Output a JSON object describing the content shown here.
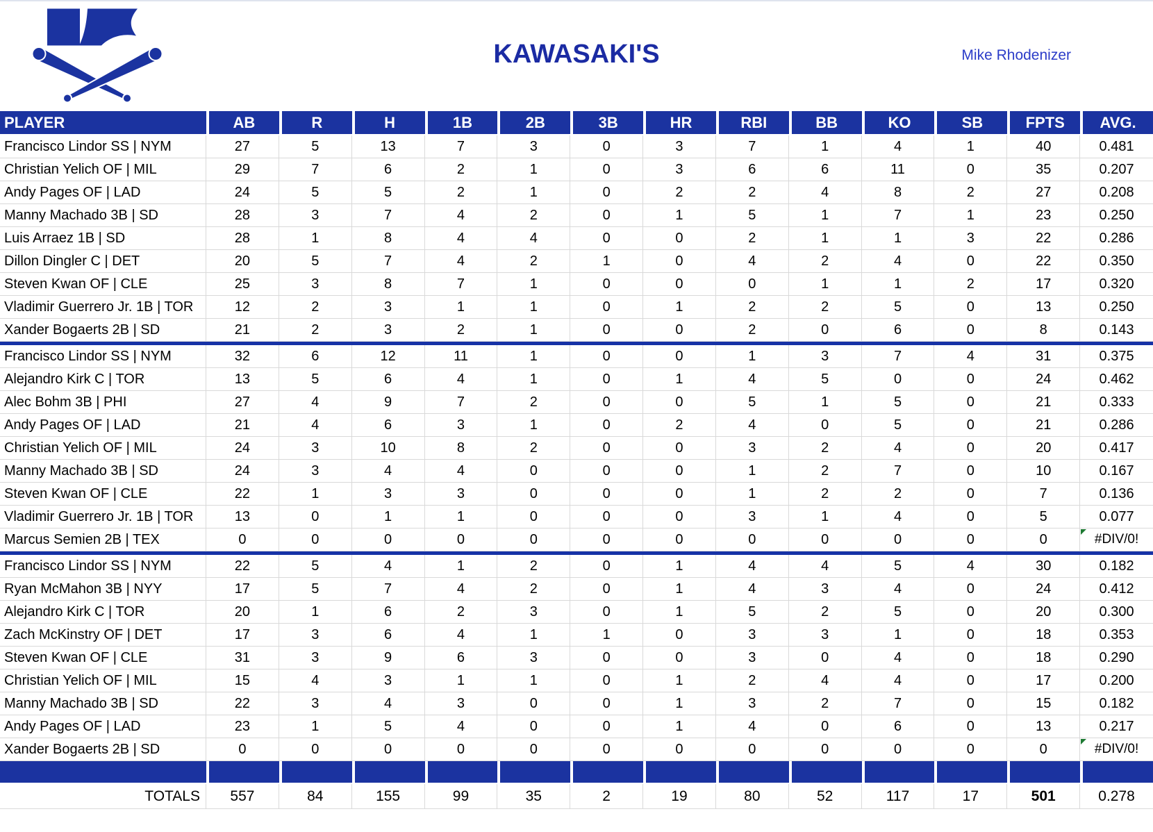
{
  "header": {
    "title": "KAWASAKI'S",
    "owner": "Mike Rhodenizer",
    "logo": "kawasaki-k-crossed-bats-logo"
  },
  "colors": {
    "primary_blue": "#1B33A0",
    "title_blue": "#1B2BA3",
    "owner_blue": "#2B3CC8",
    "divider_blue": "#1632A6",
    "gridline_gray": "#D9D9D9",
    "error_indicator_green": "#1E7A33"
  },
  "table": {
    "columns": [
      "PLAYER",
      "AB",
      "R",
      "H",
      "1B",
      "2B",
      "3B",
      "HR",
      "RBI",
      "BB",
      "KO",
      "SB",
      "FPTS",
      "AVG."
    ],
    "error_value": "#DIV/0!",
    "sections": [
      {
        "rows": [
          {
            "player": "Francisco Lindor SS | NYM",
            "values": [
              "27",
              "5",
              "13",
              "7",
              "3",
              "0",
              "3",
              "7",
              "1",
              "4",
              "1",
              "40",
              "0.481"
            ]
          },
          {
            "player": "Christian Yelich OF | MIL",
            "values": [
              "29",
              "7",
              "6",
              "2",
              "1",
              "0",
              "3",
              "6",
              "6",
              "11",
              "0",
              "35",
              "0.207"
            ]
          },
          {
            "player": "Andy Pages OF | LAD",
            "values": [
              "24",
              "5",
              "5",
              "2",
              "1",
              "0",
              "2",
              "2",
              "4",
              "8",
              "2",
              "27",
              "0.208"
            ]
          },
          {
            "player": "Manny Machado 3B | SD",
            "values": [
              "28",
              "3",
              "7",
              "4",
              "2",
              "0",
              "1",
              "5",
              "1",
              "7",
              "1",
              "23",
              "0.250"
            ]
          },
          {
            "player": "Luis Arraez 1B | SD",
            "values": [
              "28",
              "1",
              "8",
              "4",
              "4",
              "0",
              "0",
              "2",
              "1",
              "1",
              "3",
              "22",
              "0.286"
            ]
          },
          {
            "player": "Dillon Dingler C | DET",
            "values": [
              "20",
              "5",
              "7",
              "4",
              "2",
              "1",
              "0",
              "4",
              "2",
              "4",
              "0",
              "22",
              "0.350"
            ]
          },
          {
            "player": "Steven Kwan OF | CLE",
            "values": [
              "25",
              "3",
              "8",
              "7",
              "1",
              "0",
              "0",
              "0",
              "1",
              "1",
              "2",
              "17",
              "0.320"
            ]
          },
          {
            "player": "Vladimir Guerrero Jr. 1B | TOR",
            "values": [
              "12",
              "2",
              "3",
              "1",
              "1",
              "0",
              "1",
              "2",
              "2",
              "5",
              "0",
              "13",
              "0.250"
            ]
          },
          {
            "player": "Xander Bogaerts 2B | SD",
            "values": [
              "21",
              "2",
              "3",
              "2",
              "1",
              "0",
              "0",
              "2",
              "0",
              "6",
              "0",
              "8",
              "0.143"
            ]
          }
        ]
      },
      {
        "rows": [
          {
            "player": "Francisco Lindor SS | NYM",
            "values": [
              "32",
              "6",
              "12",
              "11",
              "1",
              "0",
              "0",
              "1",
              "3",
              "7",
              "4",
              "31",
              "0.375"
            ]
          },
          {
            "player": "Alejandro Kirk C | TOR",
            "values": [
              "13",
              "5",
              "6",
              "4",
              "1",
              "0",
              "1",
              "4",
              "5",
              "0",
              "0",
              "24",
              "0.462"
            ]
          },
          {
            "player": "Alec Bohm 3B | PHI",
            "values": [
              "27",
              "4",
              "9",
              "7",
              "2",
              "0",
              "0",
              "5",
              "1",
              "5",
              "0",
              "21",
              "0.333"
            ]
          },
          {
            "player": "Andy Pages OF | LAD",
            "values": [
              "21",
              "4",
              "6",
              "3",
              "1",
              "0",
              "2",
              "4",
              "0",
              "5",
              "0",
              "21",
              "0.286"
            ]
          },
          {
            "player": "Christian Yelich OF | MIL",
            "values": [
              "24",
              "3",
              "10",
              "8",
              "2",
              "0",
              "0",
              "3",
              "2",
              "4",
              "0",
              "20",
              "0.417"
            ]
          },
          {
            "player": "Manny Machado 3B | SD",
            "values": [
              "24",
              "3",
              "4",
              "4",
              "0",
              "0",
              "0",
              "1",
              "2",
              "7",
              "0",
              "10",
              "0.167"
            ]
          },
          {
            "player": "Steven Kwan OF | CLE",
            "values": [
              "22",
              "1",
              "3",
              "3",
              "0",
              "0",
              "0",
              "1",
              "2",
              "2",
              "0",
              "7",
              "0.136"
            ]
          },
          {
            "player": "Vladimir Guerrero Jr. 1B | TOR",
            "values": [
              "13",
              "0",
              "1",
              "1",
              "0",
              "0",
              "0",
              "3",
              "1",
              "4",
              "0",
              "5",
              "0.077"
            ]
          },
          {
            "player": "Marcus Semien 2B | TEX",
            "values": [
              "0",
              "0",
              "0",
              "0",
              "0",
              "0",
              "0",
              "0",
              "0",
              "0",
              "0",
              "0",
              "#DIV/0!"
            ]
          }
        ]
      },
      {
        "rows": [
          {
            "player": "Francisco Lindor SS | NYM",
            "values": [
              "22",
              "5",
              "4",
              "1",
              "2",
              "0",
              "1",
              "4",
              "4",
              "5",
              "4",
              "30",
              "0.182"
            ]
          },
          {
            "player": "Ryan McMahon 3B | NYY",
            "values": [
              "17",
              "5",
              "7",
              "4",
              "2",
              "0",
              "1",
              "4",
              "3",
              "4",
              "0",
              "24",
              "0.412"
            ]
          },
          {
            "player": "Alejandro Kirk C | TOR",
            "values": [
              "20",
              "1",
              "6",
              "2",
              "3",
              "0",
              "1",
              "5",
              "2",
              "5",
              "0",
              "20",
              "0.300"
            ]
          },
          {
            "player": "Zach McKinstry OF | DET",
            "values": [
              "17",
              "3",
              "6",
              "4",
              "1",
              "1",
              "0",
              "3",
              "3",
              "1",
              "0",
              "18",
              "0.353"
            ]
          },
          {
            "player": "Steven Kwan OF | CLE",
            "values": [
              "31",
              "3",
              "9",
              "6",
              "3",
              "0",
              "0",
              "3",
              "0",
              "4",
              "0",
              "18",
              "0.290"
            ]
          },
          {
            "player": "Christian Yelich OF | MIL",
            "values": [
              "15",
              "4",
              "3",
              "1",
              "1",
              "0",
              "1",
              "2",
              "4",
              "4",
              "0",
              "17",
              "0.200"
            ]
          },
          {
            "player": "Manny Machado 3B | SD",
            "values": [
              "22",
              "3",
              "4",
              "3",
              "0",
              "0",
              "1",
              "3",
              "2",
              "7",
              "0",
              "15",
              "0.182"
            ]
          },
          {
            "player": "Andy Pages OF | LAD",
            "values": [
              "23",
              "1",
              "5",
              "4",
              "0",
              "0",
              "1",
              "4",
              "0",
              "6",
              "0",
              "13",
              "0.217"
            ]
          },
          {
            "player": "Xander Bogaerts 2B | SD",
            "values": [
              "0",
              "0",
              "0",
              "0",
              "0",
              "0",
              "0",
              "0",
              "0",
              "0",
              "0",
              "0",
              "#DIV/0!"
            ]
          }
        ]
      }
    ],
    "totals": {
      "label": "TOTALS",
      "values": [
        "557",
        "84",
        "155",
        "99",
        "35",
        "2",
        "19",
        "80",
        "52",
        "117",
        "17",
        "501",
        "0.278"
      ],
      "bold_index": 11
    }
  }
}
